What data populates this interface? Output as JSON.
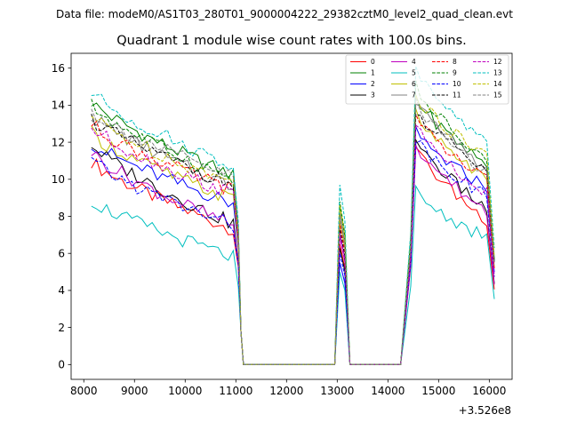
{
  "chart_data": {
    "type": "line",
    "suptitle": "Data file: modeM0/AS1T03_280T01_9000004222_29382cztM0_level2_quad_clean.evt",
    "title": "Quadrant 1 module wise count rates with 100.0s bins.",
    "xlabel": "",
    "ylabel": "",
    "x_offset_label": "+3.526e8",
    "xlim": [
      7750,
      16450
    ],
    "ylim": [
      -0.8,
      16.8
    ],
    "xticks": [
      8000,
      9000,
      10000,
      11000,
      12000,
      13000,
      14000,
      15000,
      16000
    ],
    "yticks": [
      0,
      2,
      4,
      6,
      8,
      10,
      12,
      14,
      16
    ],
    "grid": false,
    "legend_position": "top-right",
    "legend_ncol": 4,
    "segments": [
      {
        "start": 8150,
        "end": 11150,
        "step": 100,
        "decay": 0.17
      },
      {
        "start": 13050,
        "end": 13150,
        "step": 100,
        "decay": 0.0
      },
      {
        "start": 14550,
        "end": 16050,
        "step": 100,
        "decay": 0.3
      }
    ],
    "gap_x": [
      11150,
      12950,
      13250,
      14250
    ],
    "series": [
      {
        "name": "0",
        "color": "#ff0000",
        "dash": "solid",
        "seg1": [
          11.0,
          7.3
        ],
        "seg2": 6.5,
        "seg3": [
          11.8,
          7.8
        ]
      },
      {
        "name": "1",
        "color": "#008000",
        "dash": "solid",
        "seg1": [
          14.2,
          10.2
        ],
        "seg2": 8.6,
        "seg3": [
          14.5,
          10.8
        ]
      },
      {
        "name": "2",
        "color": "#0000ff",
        "dash": "solid",
        "seg1": [
          12.0,
          8.7
        ],
        "seg2": 5.5,
        "seg3": [
          12.5,
          9.6
        ]
      },
      {
        "name": "3",
        "color": "#000000",
        "dash": "solid",
        "seg1": [
          11.9,
          7.6
        ],
        "seg2": 6.3,
        "seg3": [
          12.3,
          8.4
        ]
      },
      {
        "name": "4",
        "color": "#bf00bf",
        "dash": "solid",
        "seg1": [
          11.5,
          7.5
        ],
        "seg2": 6.9,
        "seg3": [
          12.0,
          8.3
        ]
      },
      {
        "name": "5",
        "color": "#00bfbf",
        "dash": "solid",
        "seg1": [
          8.9,
          5.8
        ],
        "seg2": 5.0,
        "seg3": [
          9.4,
          6.8
        ]
      },
      {
        "name": "6",
        "color": "#bfbf00",
        "dash": "solid",
        "seg1": [
          12.5,
          8.9
        ],
        "seg2": 7.8,
        "seg3": [
          13.5,
          10.0
        ]
      },
      {
        "name": "7",
        "color": "#808080",
        "dash": "solid",
        "seg1": [
          13.5,
          9.6
        ],
        "seg2": 8.2,
        "seg3": [
          14.3,
          10.6
        ]
      },
      {
        "name": "8",
        "color": "#ff0000",
        "dash": "dashed",
        "seg1": [
          13.0,
          9.4
        ],
        "seg2": 7.6,
        "seg3": [
          13.4,
          9.9
        ]
      },
      {
        "name": "9",
        "color": "#008000",
        "dash": "dashed",
        "seg1": [
          14.0,
          10.0
        ],
        "seg2": 8.8,
        "seg3": [
          15.2,
          10.9
        ]
      },
      {
        "name": "10",
        "color": "#0000ff",
        "dash": "dashed",
        "seg1": [
          11.0,
          7.5
        ],
        "seg2": 6.0,
        "seg3": [
          12.3,
          9.1
        ]
      },
      {
        "name": "11",
        "color": "#000000",
        "dash": "dashed",
        "seg1": [
          13.3,
          9.7
        ],
        "seg2": 7.3,
        "seg3": [
          13.8,
          10.6
        ]
      },
      {
        "name": "12",
        "color": "#bf00bf",
        "dash": "dashed",
        "seg1": [
          12.8,
          9.2
        ],
        "seg2": 7.1,
        "seg3": [
          13.0,
          9.2
        ]
      },
      {
        "name": "13",
        "color": "#00bfbf",
        "dash": "dashed",
        "seg1": [
          14.7,
          10.7
        ],
        "seg2": 9.7,
        "seg3": [
          15.9,
          12.1
        ]
      },
      {
        "name": "14",
        "color": "#bfbf00",
        "dash": "dashed",
        "seg1": [
          13.4,
          9.8
        ],
        "seg2": 8.6,
        "seg3": [
          14.6,
          11.2
        ]
      },
      {
        "name": "15",
        "color": "#808080",
        "dash": "dashed",
        "seg1": [
          13.7,
          10.1
        ],
        "seg2": 8.0,
        "seg3": [
          14.1,
          10.4
        ]
      }
    ]
  }
}
